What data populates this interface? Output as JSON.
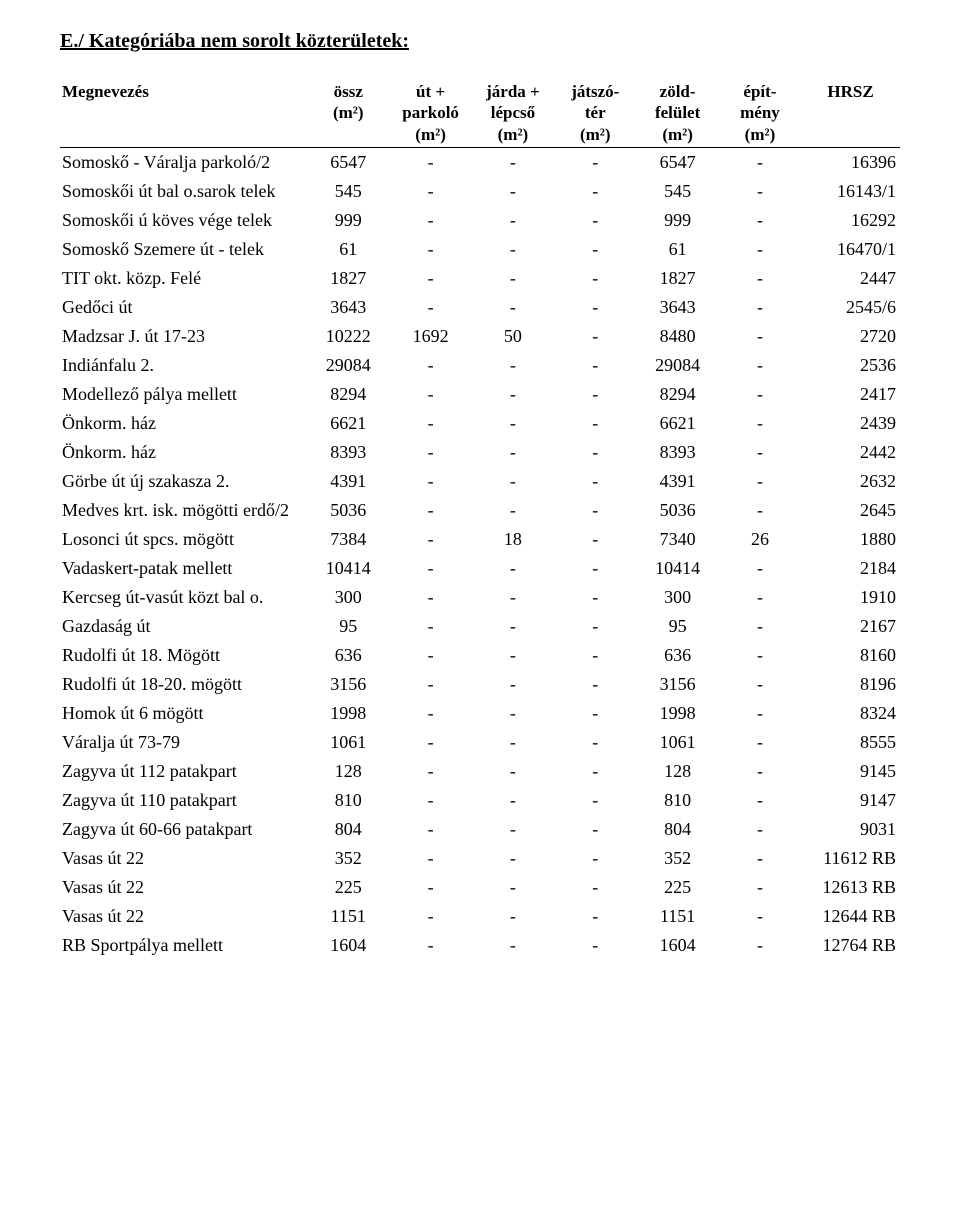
{
  "title": "E./ Kategóriába nem sorolt közterületek:",
  "headers": {
    "name": "Megnevezés",
    "ossz_l1": "össz",
    "ossz_l2": "(m²)",
    "ut_l1": "út +",
    "ut_l2": "parkoló",
    "ut_l3": "(m²)",
    "jarda_l1": "járda +",
    "jarda_l2": "lépcső",
    "jarda_l3": "(m²)",
    "jatszo_l1": "játszó-",
    "jatszo_l2": "tér",
    "jatszo_l3": "(m²)",
    "zold_l1": "zöld-",
    "zold_l2": "felület",
    "zold_l3": "(m²)",
    "epit_l1": "épít-",
    "epit_l2": "mény",
    "epit_l3": "(m²)",
    "hrsz": "HRSZ"
  },
  "rows": [
    {
      "name": "Somoskő - Váralja parkoló/2",
      "ossz": "6547",
      "ut": "-",
      "jarda": "-",
      "jatszo": "-",
      "zold": "6547",
      "epit": "-",
      "hrsz": "16396"
    },
    {
      "name": "Somoskői út bal o.sarok telek",
      "ossz": "545",
      "ut": "-",
      "jarda": "-",
      "jatszo": "-",
      "zold": "545",
      "epit": "-",
      "hrsz": "16143/1"
    },
    {
      "name": "Somoskői ú köves vége telek",
      "ossz": "999",
      "ut": "-",
      "jarda": "-",
      "jatszo": "-",
      "zold": "999",
      "epit": "-",
      "hrsz": "16292"
    },
    {
      "name": "Somoskő Szemere út - telek",
      "ossz": "61",
      "ut": "-",
      "jarda": "-",
      "jatszo": "-",
      "zold": "61",
      "epit": "-",
      "hrsz": "16470/1"
    },
    {
      "name": "TIT okt. közp. Felé",
      "ossz": "1827",
      "ut": "-",
      "jarda": "-",
      "jatszo": "-",
      "zold": "1827",
      "epit": "-",
      "hrsz": "2447"
    },
    {
      "name": "Gedőci út",
      "ossz": "3643",
      "ut": "-",
      "jarda": "-",
      "jatszo": "-",
      "zold": "3643",
      "epit": "-",
      "hrsz": "2545/6"
    },
    {
      "name": "Madzsar J. út 17-23",
      "ossz": "10222",
      "ut": "1692",
      "jarda": "50",
      "jatszo": "-",
      "zold": "8480",
      "epit": "-",
      "hrsz": "2720"
    },
    {
      "name": "Indiánfalu 2.",
      "ossz": "29084",
      "ut": "-",
      "jarda": "-",
      "jatszo": "-",
      "zold": "29084",
      "epit": "-",
      "hrsz": "2536"
    },
    {
      "name": "Modellező pálya mellett",
      "ossz": "8294",
      "ut": "-",
      "jarda": "-",
      "jatszo": "-",
      "zold": "8294",
      "epit": "-",
      "hrsz": "2417"
    },
    {
      "name": "Önkorm. ház",
      "ossz": "6621",
      "ut": "-",
      "jarda": "-",
      "jatszo": "-",
      "zold": "6621",
      "epit": "-",
      "hrsz": "2439"
    },
    {
      "name": "Önkorm. ház",
      "ossz": "8393",
      "ut": "-",
      "jarda": "-",
      "jatszo": "-",
      "zold": "8393",
      "epit": "-",
      "hrsz": "2442"
    },
    {
      "name": "Görbe út új szakasza 2.",
      "ossz": "4391",
      "ut": "-",
      "jarda": "-",
      "jatszo": "-",
      "zold": "4391",
      "epit": "-",
      "hrsz": "2632"
    },
    {
      "name": "Medves krt. isk. mögötti erdő/2",
      "ossz": "5036",
      "ut": "-",
      "jarda": "-",
      "jatszo": "-",
      "zold": "5036",
      "epit": "-",
      "hrsz": "2645"
    },
    {
      "name": "Losonci út spcs. mögött",
      "ossz": "7384",
      "ut": "-",
      "jarda": "18",
      "jatszo": "-",
      "zold": "7340",
      "epit": "26",
      "hrsz": "1880"
    },
    {
      "name": "Vadaskert-patak mellett",
      "ossz": "10414",
      "ut": "-",
      "jarda": "-",
      "jatszo": "-",
      "zold": "10414",
      "epit": "-",
      "hrsz": "2184"
    },
    {
      "name": "Kercseg út-vasút közt bal o.",
      "ossz": "300",
      "ut": "-",
      "jarda": "-",
      "jatszo": "-",
      "zold": "300",
      "epit": "-",
      "hrsz": "1910"
    },
    {
      "name": "Gazdaság út",
      "ossz": "95",
      "ut": "-",
      "jarda": "-",
      "jatszo": "-",
      "zold": "95",
      "epit": "-",
      "hrsz": "2167"
    },
    {
      "name": "Rudolfi út 18. Mögött",
      "ossz": "636",
      "ut": "-",
      "jarda": "-",
      "jatszo": "-",
      "zold": "636",
      "epit": "-",
      "hrsz": "8160"
    },
    {
      "name": "Rudolfi út 18-20. mögött",
      "ossz": "3156",
      "ut": "-",
      "jarda": "-",
      "jatszo": "-",
      "zold": "3156",
      "epit": "-",
      "hrsz": "8196"
    },
    {
      "name": "Homok út 6 mögött",
      "ossz": "1998",
      "ut": "-",
      "jarda": "-",
      "jatszo": "-",
      "zold": "1998",
      "epit": "-",
      "hrsz": "8324"
    },
    {
      "name": "Váralja út 73-79",
      "ossz": "1061",
      "ut": "-",
      "jarda": "-",
      "jatszo": "-",
      "zold": "1061",
      "epit": "-",
      "hrsz": "8555"
    },
    {
      "name": "Zagyva út 112 patakpart",
      "ossz": "128",
      "ut": "-",
      "jarda": "-",
      "jatszo": "-",
      "zold": "128",
      "epit": "-",
      "hrsz": "9145"
    },
    {
      "name": "Zagyva út 110 patakpart",
      "ossz": "810",
      "ut": "-",
      "jarda": "-",
      "jatszo": "-",
      "zold": "810",
      "epit": "-",
      "hrsz": "9147"
    },
    {
      "name": "Zagyva út 60-66 patakpart",
      "ossz": "804",
      "ut": "-",
      "jarda": "-",
      "jatszo": "-",
      "zold": "804",
      "epit": "-",
      "hrsz": "9031"
    },
    {
      "name": "Vasas út 22",
      "ossz": "352",
      "ut": "-",
      "jarda": "-",
      "jatszo": "-",
      "zold": "352",
      "epit": "-",
      "hrsz": "11612 RB"
    },
    {
      "name": "Vasas út 22",
      "ossz": "225",
      "ut": "-",
      "jarda": "-",
      "jatszo": "-",
      "zold": "225",
      "epit": "-",
      "hrsz": "12613 RB"
    },
    {
      "name": "Vasas út 22",
      "ossz": "1151",
      "ut": "-",
      "jarda": "-",
      "jatszo": "-",
      "zold": "1151",
      "epit": "-",
      "hrsz": "12644 RB"
    },
    {
      "name": "RB Sportpálya mellett",
      "ossz": "1604",
      "ut": "-",
      "jarda": "-",
      "jatszo": "-",
      "zold": "1604",
      "epit": "-",
      "hrsz": "12764 RB"
    }
  ]
}
